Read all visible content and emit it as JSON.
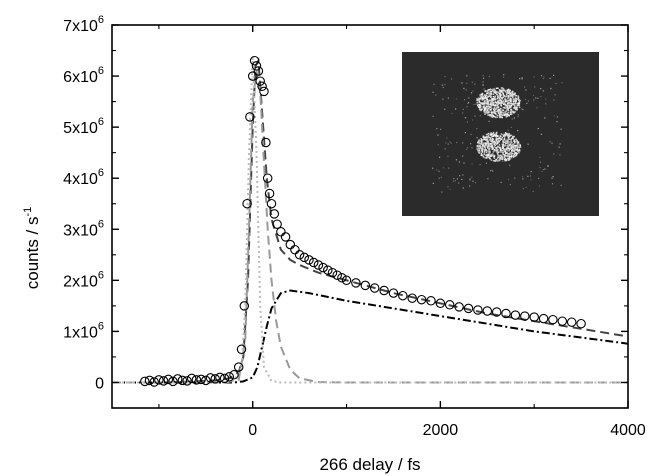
{
  "chart_data": {
    "type": "scatter",
    "xlabel": "266 delay / fs",
    "ylabel_base": "counts / s",
    "ylabel_exp": "-1",
    "xlim": [
      -1500,
      4000
    ],
    "ylim": [
      -500000,
      7000000
    ],
    "x_ticks": [
      0,
      2000,
      4000
    ],
    "x_tick_labels": [
      "0",
      "2000",
      "4000"
    ],
    "y_ticks": [
      0,
      1000000,
      2000000,
      3000000,
      4000000,
      5000000,
      6000000,
      7000000
    ],
    "y_tick_labels": [
      {
        "mant": "0",
        "exp": ""
      },
      {
        "mant": "1x10",
        "exp": "6"
      },
      {
        "mant": "2x10",
        "exp": "6"
      },
      {
        "mant": "3x10",
        "exp": "6"
      },
      {
        "mant": "4x10",
        "exp": "6"
      },
      {
        "mant": "5x10",
        "exp": "6"
      },
      {
        "mant": "6x10",
        "exp": "6"
      },
      {
        "mant": "7x10",
        "exp": "6"
      }
    ],
    "grid": false,
    "legend": "none",
    "inset": "velocity-map image (dark square with bright speckled distribution), upper-right",
    "series": [
      {
        "kind": "data-points",
        "marker": "open-circle",
        "color": "#000000",
        "x": [
          -1150,
          -1100,
          -1050,
          -1000,
          -950,
          -900,
          -850,
          -800,
          -750,
          -700,
          -650,
          -600,
          -550,
          -500,
          -450,
          -400,
          -350,
          -300,
          -250,
          -200,
          -150,
          -120,
          -90,
          -60,
          -30,
          0,
          20,
          40,
          60,
          80,
          100,
          120,
          140,
          160,
          180,
          200,
          230,
          260,
          300,
          350,
          400,
          450,
          500,
          550,
          600,
          650,
          700,
          750,
          800,
          850,
          900,
          950,
          1000,
          1100,
          1200,
          1300,
          1400,
          1500,
          1600,
          1700,
          1800,
          1900,
          2000,
          2100,
          2200,
          2300,
          2400,
          2500,
          2600,
          2700,
          2800,
          2900,
          3000,
          3100,
          3200,
          3300,
          3400,
          3500
        ],
        "y": [
          20000,
          40000,
          10000,
          50000,
          30000,
          60000,
          20000,
          70000,
          40000,
          30000,
          80000,
          50000,
          60000,
          40000,
          90000,
          70000,
          100000,
          80000,
          110000,
          150000,
          300000,
          650000,
          1500000,
          3500000,
          5200000,
          6000000,
          6300000,
          6200000,
          6100000,
          5900000,
          5800000,
          5700000,
          4700000,
          4000000,
          3700000,
          3500000,
          3300000,
          3100000,
          2950000,
          2850000,
          2700000,
          2600000,
          2500000,
          2450000,
          2400000,
          2350000,
          2300000,
          2250000,
          2200000,
          2150000,
          2100000,
          2050000,
          2000000,
          1950000,
          1900000,
          1850000,
          1800000,
          1750000,
          1700000,
          1650000,
          1620000,
          1600000,
          1550000,
          1520000,
          1480000,
          1450000,
          1420000,
          1400000,
          1380000,
          1350000,
          1320000,
          1300000,
          1280000,
          1250000,
          1230000,
          1200000,
          1180000,
          1150000
        ]
      },
      {
        "kind": "fit-total",
        "style": "dashed",
        "color": "#444444",
        "x": [
          -1500,
          -1000,
          -600,
          -400,
          -250,
          -150,
          -100,
          -50,
          0,
          30,
          60,
          100,
          150,
          200,
          300,
          400,
          500,
          700,
          1000,
          1500,
          2000,
          2500,
          3000,
          3500,
          4000
        ],
        "y": [
          0,
          0,
          20000,
          40000,
          80000,
          200000,
          500000,
          2000000,
          5000000,
          6200000,
          6300000,
          5300000,
          4000000,
          3200000,
          2600000,
          2400000,
          2300000,
          2150000,
          2000000,
          1750000,
          1550000,
          1350000,
          1200000,
          1050000,
          900000
        ]
      },
      {
        "kind": "fit-rise-component",
        "style": "dash-dot",
        "color": "#000000",
        "x": [
          -1500,
          -200,
          -100,
          0,
          50,
          100,
          150,
          200,
          300,
          400,
          600,
          1000,
          1500,
          2000,
          2500,
          3000,
          3500,
          4000
        ],
        "y": [
          0,
          0,
          20000,
          100000,
          300000,
          700000,
          1100000,
          1450000,
          1750000,
          1800000,
          1750000,
          1600000,
          1450000,
          1300000,
          1150000,
          1000000,
          880000,
          760000
        ]
      },
      {
        "kind": "fit-decay-component",
        "style": "dashed",
        "color": "#999999",
        "x": [
          -1500,
          -300,
          -150,
          -80,
          -40,
          0,
          40,
          80,
          120,
          160,
          200,
          250,
          300,
          400,
          500,
          700,
          1000,
          4000
        ],
        "y": [
          0,
          0,
          50000,
          800000,
          3000000,
          5500000,
          6100000,
          5700000,
          4300000,
          3000000,
          2000000,
          1200000,
          700000,
          250000,
          80000,
          10000,
          0,
          0
        ]
      },
      {
        "kind": "instrument-response",
        "style": "dotted",
        "color": "#bbbbbb",
        "x": [
          -1500,
          -300,
          -200,
          -120,
          -80,
          -40,
          0,
          40,
          80,
          120,
          200,
          300,
          4000
        ],
        "y": [
          0,
          0,
          30000,
          300000,
          1500000,
          4500000,
          6400000,
          4500000,
          1500000,
          300000,
          30000,
          0,
          0
        ]
      }
    ]
  }
}
